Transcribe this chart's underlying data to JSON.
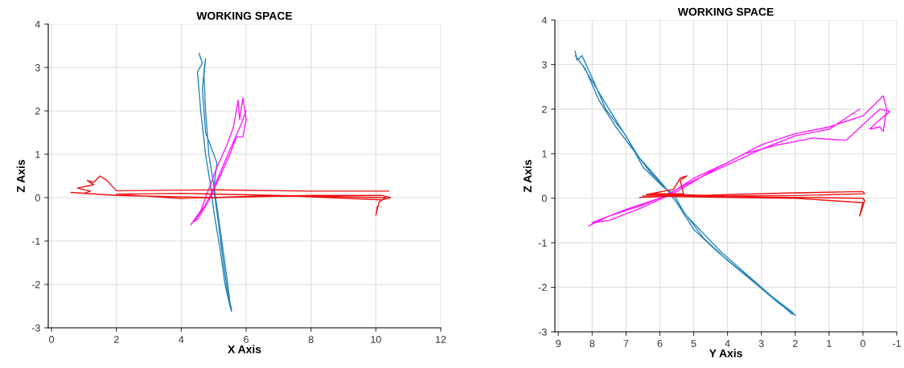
{
  "chart_data": [
    {
      "type": "line",
      "title": "WORKING SPACE",
      "xlabel": "X Axis",
      "ylabel": "Z Axis",
      "xlim": [
        -0.1,
        12
      ],
      "ylim": [
        -3,
        4
      ],
      "xticks": [
        0,
        2,
        4,
        6,
        8,
        10,
        12
      ],
      "yticks": [
        -3,
        -2,
        -1,
        0,
        1,
        2,
        3,
        4
      ],
      "grid": true,
      "series": [
        {
          "color": "#2b86b8",
          "x": [
            4.6,
            4.55,
            4.65,
            4.5,
            4.6,
            4.75,
            4.9,
            5.0,
            5.2,
            5.35,
            5.5,
            5.55,
            5.5,
            5.4,
            5.25,
            5.1,
            5.0,
            4.85,
            4.75,
            4.7,
            4.75,
            4.72,
            4.65,
            4.75,
            5.1,
            5.0,
            5.15,
            5.3,
            5.45,
            5.55
          ],
          "values": [
            3.2,
            3.33,
            3.1,
            2.9,
            2.0,
            1.0,
            0.3,
            -0.3,
            -1.2,
            -2.0,
            -2.5,
            -2.62,
            -2.4,
            -1.8,
            -1.0,
            -0.2,
            0.3,
            1.0,
            2.0,
            2.8,
            3.2,
            3.05,
            2.5,
            1.5,
            0.8,
            0.2,
            -0.6,
            -1.5,
            -2.3,
            -2.55
          ]
        },
        {
          "color": "#ff1aff",
          "x": [
            4.3,
            4.6,
            4.8,
            5.1,
            5.4,
            5.6,
            5.7,
            5.75,
            5.8,
            5.9,
            6.0,
            5.9,
            5.7,
            5.5,
            5.2,
            4.9,
            4.5,
            4.4,
            4.8,
            5.1,
            5.5,
            5.85,
            6.0
          ],
          "values": [
            -0.62,
            -0.3,
            0.1,
            0.7,
            1.2,
            1.6,
            2.0,
            2.25,
            1.8,
            2.3,
            1.8,
            1.4,
            1.4,
            1.0,
            0.5,
            0.0,
            -0.5,
            -0.55,
            -0.1,
            0.4,
            1.1,
            1.7,
            2.0
          ]
        },
        {
          "color": "#ee1111",
          "x": [
            10.4,
            8,
            5,
            2,
            1.7,
            1.5,
            1.3,
            1.1,
            1.3,
            0.8,
            1.2,
            1.0,
            0.6,
            2,
            5,
            8,
            10.2,
            10.45,
            10.2,
            7,
            4,
            2,
            4,
            7,
            10.3,
            10.1,
            10.0,
            10.05
          ],
          "values": [
            0.15,
            0.15,
            0.18,
            0.16,
            0.4,
            0.5,
            0.35,
            0.4,
            0.3,
            0.22,
            0.15,
            0.1,
            0.12,
            0.05,
            0.0,
            0.05,
            0.05,
            0.0,
            -0.05,
            0.05,
            -0.02,
            0.08,
            0.1,
            0.05,
            0.0,
            -0.1,
            -0.4,
            -0.2
          ]
        }
      ]
    },
    {
      "type": "line",
      "title": "WORKING SPACE",
      "xlabel": "Y Axis",
      "ylabel": "Z Axis",
      "xlim": [
        9.1,
        -1
      ],
      "ylim": [
        -3,
        4
      ],
      "xticks": [
        9,
        8,
        7,
        6,
        5,
        4,
        3,
        2,
        1,
        0,
        -1
      ],
      "yticks": [
        -3,
        -2,
        -1,
        0,
        1,
        2,
        3,
        4
      ],
      "grid": true,
      "series": [
        {
          "color": "#2b86b8",
          "x": [
            8.5,
            8.45,
            8.3,
            8.0,
            7.6,
            7.0,
            6.5,
            5.9,
            5.6,
            5.3,
            4.7,
            4.0,
            3.2,
            2.5,
            2.0,
            2.1,
            2.7,
            3.5,
            4.3,
            5.0,
            5.5,
            5.8,
            6.3,
            6.8,
            7.3,
            7.8,
            8.2,
            8.5,
            8.3,
            7.5,
            6.6,
            5.9,
            5.2,
            4.2,
            3.0,
            2.1
          ],
          "values": [
            3.3,
            3.1,
            3.2,
            2.7,
            2.0,
            1.4,
            0.7,
            0.25,
            0.1,
            -0.3,
            -0.9,
            -1.4,
            -1.9,
            -2.35,
            -2.63,
            -2.55,
            -2.2,
            -1.7,
            -1.2,
            -0.7,
            -0.1,
            0.2,
            0.6,
            1.1,
            1.6,
            2.2,
            2.9,
            3.2,
            3.0,
            2.0,
            0.9,
            0.3,
            -0.4,
            -1.2,
            -2.0,
            -2.6
          ]
        },
        {
          "color": "#ff1aff",
          "x": [
            8.1,
            7.5,
            6.5,
            5.7,
            5.0,
            4.0,
            3.0,
            2.0,
            1.0,
            0.0,
            -0.6,
            -0.7,
            -0.6,
            -0.5,
            -0.2,
            -0.4,
            -0.8,
            -0.5,
            0.5,
            1.5,
            2.5,
            3.5,
            4.5,
            5.5,
            6.5,
            7.5,
            8.0,
            7.0,
            6.0,
            5.0,
            4.0,
            3.0,
            2.0,
            1.0,
            0.1
          ],
          "values": [
            -0.62,
            -0.4,
            -0.15,
            0.1,
            0.45,
            0.8,
            1.2,
            1.45,
            1.6,
            1.85,
            2.3,
            2.0,
            1.5,
            1.6,
            1.55,
            1.7,
            1.95,
            2.0,
            1.3,
            1.35,
            1.2,
            1.0,
            0.6,
            0.15,
            -0.2,
            -0.5,
            -0.55,
            -0.25,
            0.0,
            0.4,
            0.75,
            1.1,
            1.4,
            1.55,
            2.0
          ]
        },
        {
          "color": "#ee1111",
          "x": [
            6.6,
            4,
            2,
            0,
            -0.05,
            2,
            4,
            6.3,
            5.3,
            5.4,
            5.2,
            5.4,
            5.6,
            6.4,
            4,
            2,
            0,
            -0.05,
            0.05,
            0.1,
            0.0,
            2,
            5,
            6.5
          ],
          "values": [
            0.02,
            0.08,
            0.12,
            0.15,
            0.1,
            0.06,
            0.05,
            0.1,
            0.1,
            0.4,
            0.5,
            0.45,
            0.2,
            0.08,
            0.03,
            0.02,
            0.0,
            -0.05,
            -0.3,
            -0.4,
            -0.1,
            0.0,
            0.03,
            0.05
          ]
        }
      ]
    }
  ]
}
